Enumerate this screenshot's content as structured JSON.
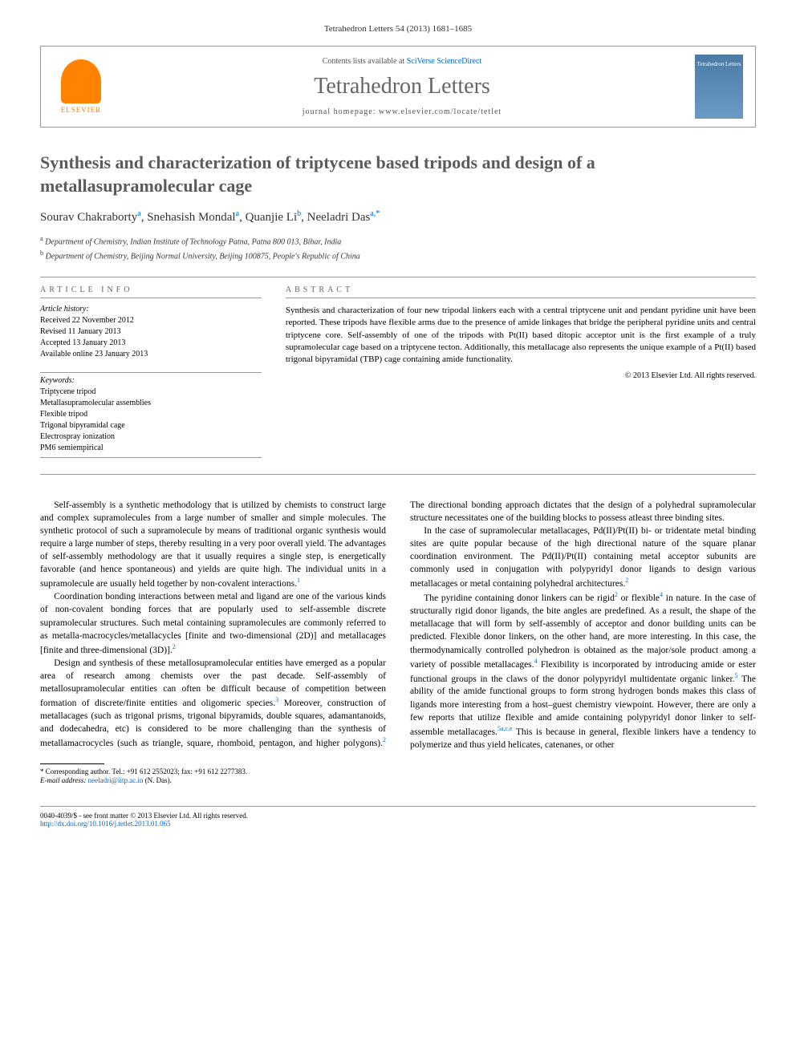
{
  "journal_ref": "Tetrahedron Letters 54 (2013) 1681–1685",
  "header": {
    "elsevier_label": "ELSEVIER",
    "contents_prefix": "Contents lists available at ",
    "contents_link": "SciVerse ScienceDirect",
    "journal_name": "Tetrahedron Letters",
    "homepage_prefix": "journal homepage: ",
    "homepage_url": "www.elsevier.com/locate/tetlet",
    "cover_text": "Tetrahedron Letters"
  },
  "title": "Synthesis and characterization of triptycene based tripods and design of a metallasupramolecular cage",
  "authors_html": "Sourav Chakraborty",
  "authors": [
    {
      "name": "Sourav Chakraborty",
      "aff": "a"
    },
    {
      "name": "Snehasish Mondal",
      "aff": "a"
    },
    {
      "name": "Quanjie Li",
      "aff": "b"
    },
    {
      "name": "Neeladri Das",
      "aff": "a,",
      "corr": "*"
    }
  ],
  "affiliations": [
    {
      "sup": "a",
      "text": "Department of Chemistry, Indian Institute of Technology Patna, Patna 800 013, Bihar, India"
    },
    {
      "sup": "b",
      "text": "Department of Chemistry, Beijing Normal University, Beijing 100875, People's Republic of China"
    }
  ],
  "info": {
    "heading": "ARTICLE INFO",
    "history_label": "Article history:",
    "history": [
      "Received 22 November 2012",
      "Revised 11 January 2013",
      "Accepted 13 January 2013",
      "Available online 23 January 2013"
    ],
    "keywords_label": "Keywords:",
    "keywords": [
      "Triptycene tripod",
      "Metallasupramolecular assemblies",
      "Flexible tripod",
      "Trigonal bipyramidal cage",
      "Electrospray ionization",
      "PM6 semiempirical"
    ]
  },
  "abstract": {
    "heading": "ABSTRACT",
    "text": "Synthesis and characterization of four new tripodal linkers each with a central triptycene unit and pendant pyridine unit have been reported. These tripods have flexible arms due to the presence of amide linkages that bridge the peripheral pyridine units and central triptycene core. Self-assembly of one of the tripods with Pt(II) based ditopic acceptor unit is the first example of a truly supramolecular cage based on a triptycene tecton. Additionally, this metallacage also represents the unique example of a Pt(II) based trigonal bipyramidal (TBP) cage containing amide functionality.",
    "copyright": "© 2013 Elsevier Ltd. All rights reserved."
  },
  "body": {
    "p1": "Self-assembly is a synthetic methodology that is utilized by chemists to construct large and complex supramolecules from a large number of smaller and simple molecules. The synthetic protocol of such a supramolecule by means of traditional organic synthesis would require a large number of steps, thereby resulting in a very poor overall yield. The advantages of self-assembly methodology are that it usually requires a single step, is energetically favorable (and hence spontaneous) and yields are quite high. The individual units in a supramolecule are usually held together by non-covalent interactions.",
    "p1_ref": "1",
    "p2": "Coordination bonding interactions between metal and ligand are one of the various kinds of non-covalent bonding forces that are popularly used to self-assemble discrete supramolecular structures. Such metal containing supramolecules are commonly referred to as metalla-macrocycles/metallacycles [finite and two-dimensional (2D)] and metallacages [finite and three-dimensional (3D)].",
    "p2_ref": "2",
    "p3a": "Design and synthesis of these metallosupramolecular entities have emerged as a popular area of research among chemists over the past decade. Self-assembly of metallosupramolecular entities can often be difficult because of competition between formation of discrete/finite entities and oligomeric species.",
    "p3_ref1": "3",
    "p3b": " Moreover, construction of metallacages (such as trigonal prisms, trigonal bipyramids, double squares, adamantanoids, and dodecahedra, etc) is considered to be more challenging than the synthesis of metallamacrocycles (such as triangle, square, rhomboid, pentagon, and higher polygons).",
    "p3_ref2": "2",
    "p3c": " The directional bonding approach dictates that the design of a polyhedral supramolecular structure necessitates one of the building blocks to possess atleast three binding sites.",
    "p4a": "In the case of supramolecular metallacages, Pd(II)/Pt(II) bi- or tridentate metal binding sites are quite popular because of the high directional nature of the square planar coordination environment. The Pd(II)/Pt(II) containing metal acceptor subunits are commonly used in conjugation with polypyridyl donor ligands to design various metallacages or metal containing polyhedral architectures.",
    "p4_ref": "2",
    "p5a": "The pyridine containing donor linkers can be rigid",
    "p5_ref1": "2",
    "p5b": " or flexible",
    "p5_ref2": "4",
    "p5c": " in nature. In the case of structurally rigid donor ligands, the bite angles are predefined. As a result, the shape of the metallacage that will form by self-assembly of acceptor and donor building units can be predicted. Flexible donor linkers, on the other hand, are more interesting. In this case, the thermodynamically controlled polyhedron is obtained as the major/sole product among a variety of possible metallacages.",
    "p5_ref3": "4",
    "p5d": " Flexibility is incorporated by introducing amide or ester functional groups in the claws of the donor polypyridyl multidentate organic linker.",
    "p5_ref4": "5",
    "p5e": " The ability of the amide functional groups to form strong hydrogen bonds makes this class of ligands more interesting from a host–guest chemistry viewpoint. However, there are only a few reports that utilize flexible and amide containing polypyridyl donor linker to self-assemble metallacages.",
    "p5_ref5": "5a,c,e",
    "p5f": " This is because in general, flexible linkers have a tendency to polymerize and thus yield helicates, catenanes, or other"
  },
  "corresponding": {
    "label": "* Corresponding author. Tel.: +91 612 2552023; fax: +91 612 2277383.",
    "email_label": "E-mail address: ",
    "email": "neeladri@iitp.ac.in",
    "email_suffix": " (N. Das)."
  },
  "footer": {
    "line1": "0040-4039/$ - see front matter © 2013 Elsevier Ltd. All rights reserved.",
    "doi": "http://dx.doi.org/10.1016/j.tetlet.2013.01.065"
  },
  "colors": {
    "elsevier_orange": "#ff8200",
    "link_blue": "#0066cc",
    "title_gray": "#5b5b5b",
    "journal_gray": "#666666"
  }
}
